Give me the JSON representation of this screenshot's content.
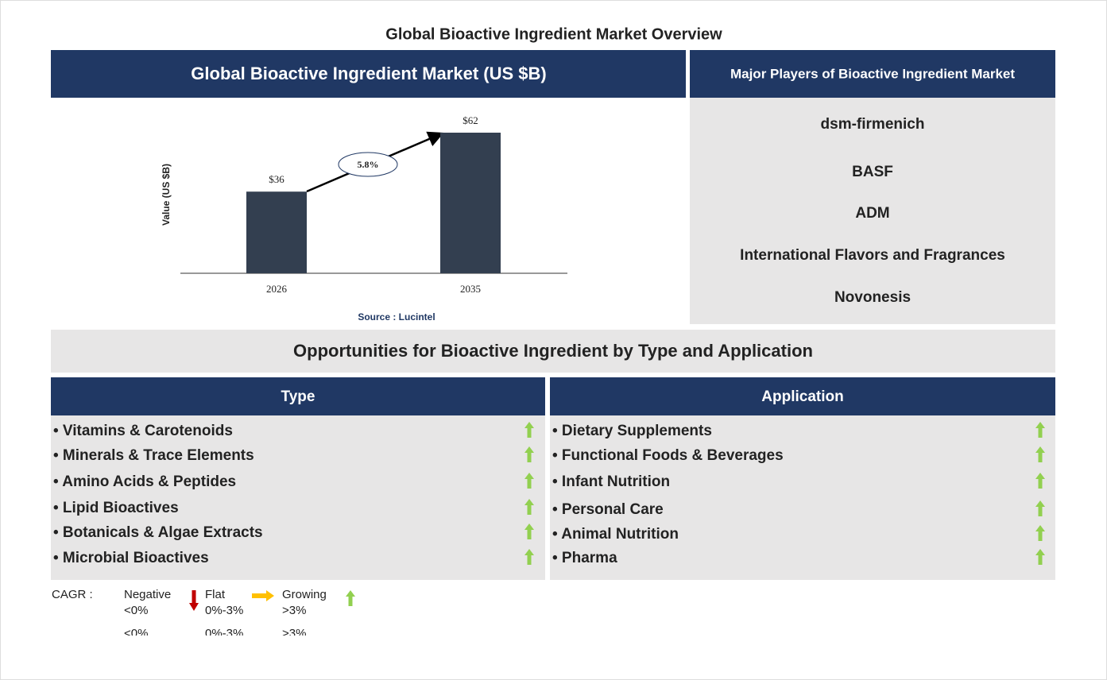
{
  "title": "Global Bioactive Ingredient Market Overview",
  "chart_data": {
    "type": "bar",
    "title": "Global Bioactive Ingredient Market (US $B)",
    "y_label": "Value (US $B)",
    "categories": [
      "2026",
      "2035"
    ],
    "values": [
      36,
      62
    ],
    "value_labels": [
      "$36",
      "$62"
    ],
    "color": "#333f50",
    "annotation": "5.8%",
    "source": "Source : Lucintel"
  },
  "players": {
    "title": "Major Players of Bioactive Ingredient Market",
    "items": [
      "dsm-firmenich",
      "BASF",
      "ADM",
      "International Flavors and Fragrances",
      "Novonesis"
    ]
  },
  "opportunities": {
    "title": "Opportunities for Bioactive Ingredient by Type and Application",
    "type": {
      "title": "Type",
      "items": [
        "• Vitamins & Carotenoids",
        "• Minerals & Trace Elements",
        "• Amino Acids & Peptides",
        "• Lipid Bioactives",
        "• Botanicals & Algae Extracts",
        "• Microbial Bioactives"
      ]
    },
    "application": {
      "title": "Application",
      "items": [
        "• Dietary Supplements",
        "• Functional Foods & Beverages",
        "• Infant Nutrition",
        "• Personal Care",
        "• Animal Nutrition",
        "• Pharma"
      ]
    }
  },
  "legend": {
    "label": "CAGR :",
    "items": [
      {
        "name": "Negative",
        "range": "<0%"
      },
      {
        "name": "Flat",
        "range": "0%-3%"
      },
      {
        "name": "Growing",
        "range": ">3%"
      }
    ]
  }
}
